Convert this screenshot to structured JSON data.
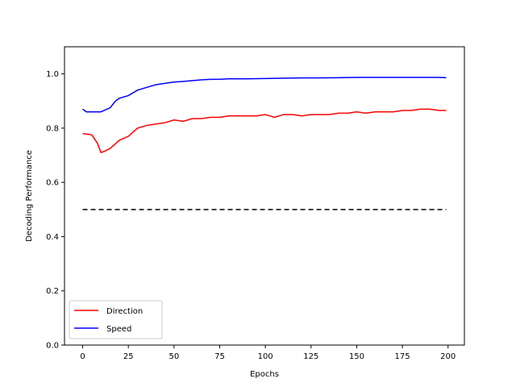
{
  "chart_data": {
    "type": "line",
    "title": "",
    "xlabel": "Epochs",
    "ylabel": "Decoding Performance",
    "xlim": [
      -9.95,
      208.95
    ],
    "ylim": [
      0.0,
      1.1
    ],
    "x_ticks": [
      0,
      25,
      50,
      75,
      100,
      125,
      150,
      175,
      200
    ],
    "y_ticks": [
      0.0,
      0.2,
      0.4,
      0.6,
      0.8,
      1.0
    ],
    "x_tick_labels": [
      "0",
      "25",
      "50",
      "75",
      "100",
      "125",
      "150",
      "175",
      "200"
    ],
    "y_tick_labels": [
      "0.0",
      "0.2",
      "0.4",
      "0.6",
      "0.8",
      "1.0"
    ],
    "grid": false,
    "legend": {
      "placement": "lower-left",
      "entries": [
        "Direction",
        "Speed"
      ]
    },
    "series": [
      {
        "name": "Direction",
        "color": "#ff0000",
        "x": [
          0,
          5,
          8,
          10,
          12,
          15,
          20,
          25,
          30,
          35,
          40,
          45,
          50,
          55,
          60,
          65,
          70,
          75,
          80,
          85,
          90,
          95,
          100,
          105,
          110,
          115,
          120,
          125,
          130,
          135,
          140,
          145,
          150,
          155,
          160,
          165,
          170,
          175,
          180,
          185,
          190,
          195,
          199
        ],
        "values": [
          0.78,
          0.775,
          0.745,
          0.71,
          0.715,
          0.725,
          0.755,
          0.77,
          0.8,
          0.81,
          0.815,
          0.82,
          0.83,
          0.825,
          0.835,
          0.835,
          0.84,
          0.84,
          0.845,
          0.845,
          0.845,
          0.845,
          0.85,
          0.84,
          0.85,
          0.85,
          0.845,
          0.85,
          0.85,
          0.85,
          0.855,
          0.855,
          0.86,
          0.855,
          0.86,
          0.86,
          0.86,
          0.865,
          0.865,
          0.87,
          0.87,
          0.865,
          0.865
        ]
      },
      {
        "name": "Speed",
        "color": "#0000ff",
        "x": [
          0,
          2,
          5,
          10,
          15,
          18,
          20,
          25,
          30,
          35,
          40,
          45,
          50,
          55,
          60,
          65,
          70,
          75,
          80,
          90,
          100,
          110,
          120,
          130,
          140,
          150,
          160,
          170,
          180,
          190,
          195,
          199
        ],
        "values": [
          0.87,
          0.86,
          0.86,
          0.86,
          0.875,
          0.9,
          0.91,
          0.92,
          0.94,
          0.95,
          0.96,
          0.965,
          0.97,
          0.972,
          0.975,
          0.978,
          0.98,
          0.98,
          0.982,
          0.982,
          0.983,
          0.984,
          0.985,
          0.985,
          0.986,
          0.987,
          0.987,
          0.987,
          0.987,
          0.987,
          0.987,
          0.986
        ]
      },
      {
        "name": "",
        "color": "#000000",
        "dashed": true,
        "x": [
          0,
          199
        ],
        "values": [
          0.5,
          0.5
        ]
      }
    ]
  }
}
